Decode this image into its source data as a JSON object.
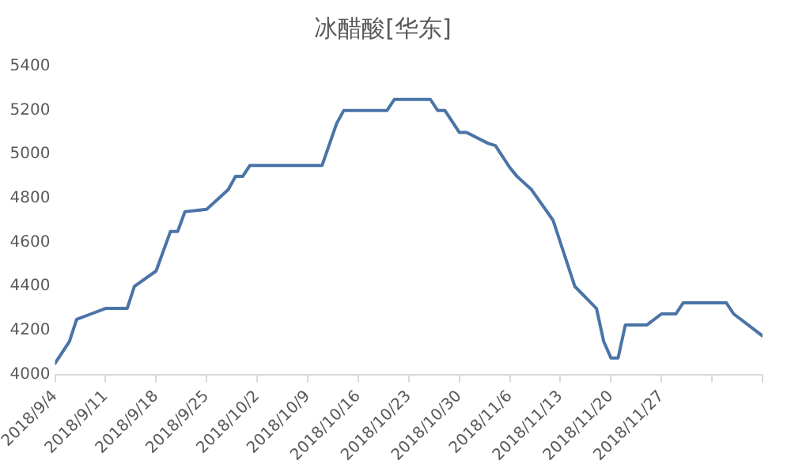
{
  "chart_data": {
    "type": "line",
    "title": "冰醋酸[华东]",
    "x": [
      "2018-09-04",
      "2018-09-06",
      "2018-09-07",
      "2018-09-09",
      "2018-09-11",
      "2018-09-14",
      "2018-09-15",
      "2018-09-18",
      "2018-09-20",
      "2018-09-21",
      "2018-09-22",
      "2018-09-25",
      "2018-09-28",
      "2018-09-29",
      "2018-09-30",
      "2018-10-01",
      "2018-10-11",
      "2018-10-13",
      "2018-10-14",
      "2018-10-20",
      "2018-10-21",
      "2018-10-26",
      "2018-10-27",
      "2018-10-28",
      "2018-10-30",
      "2018-10-31",
      "2018-11-03",
      "2018-11-04",
      "2018-11-06",
      "2018-11-07",
      "2018-11-09",
      "2018-11-12",
      "2018-11-15",
      "2018-11-18",
      "2018-11-19",
      "2018-11-20",
      "2018-11-21",
      "2018-11-22",
      "2018-11-25",
      "2018-11-27",
      "2018-11-29",
      "2018-11-30",
      "2018-12-06",
      "2018-12-07",
      "2018-12-11"
    ],
    "series": [
      {
        "color": "#4a74a6",
        "values": [
          4050,
          4150,
          4250,
          4275,
          4300,
          4300,
          4400,
          4470,
          4650,
          4650,
          4740,
          4750,
          4840,
          4900,
          4900,
          4950,
          4950,
          5140,
          5200,
          5200,
          5250,
          5250,
          5200,
          5200,
          5100,
          5100,
          5050,
          5040,
          4940,
          4900,
          4840,
          4700,
          4400,
          4300,
          4150,
          4075,
          4075,
          4225,
          4225,
          4275,
          4275,
          4325,
          4325,
          4275,
          4175
        ]
      }
    ],
    "xlim": [
      "2018-09-04",
      "2018-12-11"
    ],
    "xticks": [
      {
        "value": "2018-09-04",
        "label": "2018/9/4"
      },
      {
        "value": "2018-09-11",
        "label": "2018/9/11"
      },
      {
        "value": "2018-09-18",
        "label": "2018/9/18"
      },
      {
        "value": "2018-09-25",
        "label": "2018/9/25"
      },
      {
        "value": "2018-10-02",
        "label": "2018/10/2"
      },
      {
        "value": "2018-10-09",
        "label": "2018/10/9"
      },
      {
        "value": "2018-10-16",
        "label": "2018/10/16"
      },
      {
        "value": "2018-10-23",
        "label": "2018/10/23"
      },
      {
        "value": "2018-10-30",
        "label": "2018/10/30"
      },
      {
        "value": "2018-11-06",
        "label": "2018/11/6"
      },
      {
        "value": "2018-11-13",
        "label": "2018/11/13"
      },
      {
        "value": "2018-11-20",
        "label": "2018/11/20"
      },
      {
        "value": "2018-11-27",
        "label": "2018/11/27"
      },
      {
        "value": "2018-12-04",
        "label": null
      },
      {
        "value": "2018-12-11",
        "label": null
      }
    ],
    "ylim": [
      4000,
      5400
    ],
    "yticks": [
      4000,
      4200,
      4400,
      4600,
      4800,
      5000,
      5200,
      5400
    ],
    "grid": false,
    "legend": false,
    "marker": "none",
    "line_style": "solid"
  }
}
